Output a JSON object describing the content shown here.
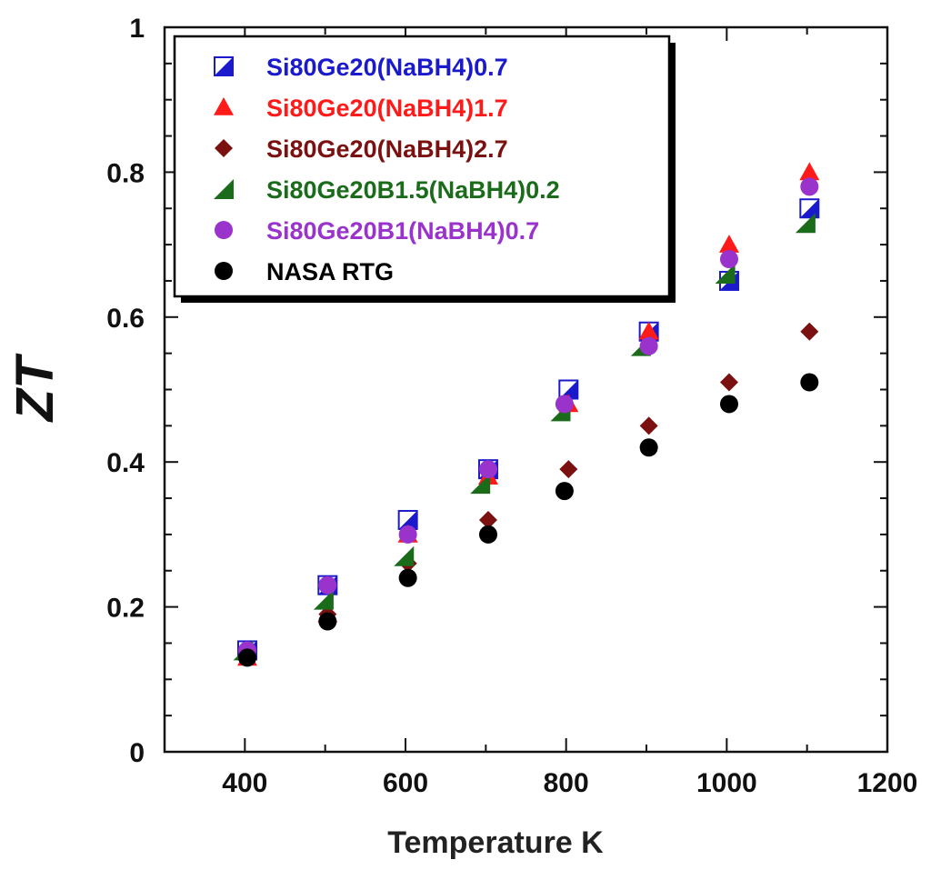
{
  "chart_data": {
    "type": "scatter",
    "xlabel": "Temperature K",
    "ylabel": "ZT",
    "xlim": [
      300,
      1200
    ],
    "ylim": [
      0,
      1
    ],
    "xticks": [
      400,
      600,
      800,
      1000,
      1200
    ],
    "yticks": [
      0,
      0.2,
      0.4,
      0.6,
      0.8,
      1
    ],
    "ytick_labels": [
      "0",
      "0.2",
      "0.4",
      "0.6",
      "0.8",
      "1"
    ],
    "legend_position": "top-left",
    "series": [
      {
        "name": "Si80Ge20(NaBH4)0.7",
        "color": "#1a1acc",
        "marker": "half-filled-square",
        "x": [
          403,
          503,
          603,
          703,
          803,
          903,
          1003,
          1103
        ],
        "y": [
          0.14,
          0.23,
          0.32,
          0.39,
          0.5,
          0.58,
          0.65,
          0.75
        ]
      },
      {
        "name": "Si80Ge20(NaBH4)1.7",
        "color": "#ff1a1a",
        "marker": "triangle-up",
        "x": [
          403,
          503,
          603,
          703,
          803,
          903,
          1003,
          1103
        ],
        "y": [
          0.13,
          0.19,
          0.3,
          0.38,
          0.48,
          0.58,
          0.7,
          0.8
        ]
      },
      {
        "name": "Si80Ge20(NaBH4)2.7",
        "color": "#7a1010",
        "marker": "diamond",
        "x": [
          403,
          503,
          603,
          703,
          803,
          903,
          1003,
          1103
        ],
        "y": [
          0.13,
          0.19,
          0.26,
          0.32,
          0.39,
          0.45,
          0.51,
          0.58
        ]
      },
      {
        "name": "Si80Ge20B1.5(NaBH4)0.2",
        "color": "#1a6b1a",
        "marker": "right-triangle",
        "x": [
          398,
          498,
          598,
          693,
          793,
          893,
          998,
          1098
        ],
        "y": [
          0.14,
          0.21,
          0.27,
          0.37,
          0.47,
          0.56,
          0.66,
          0.73
        ]
      },
      {
        "name": "Si80Ge20B1(NaBH4)0.7",
        "color": "#9933cc",
        "marker": "circle",
        "x": [
          403,
          503,
          603,
          703,
          798,
          903,
          1003,
          1103
        ],
        "y": [
          0.14,
          0.23,
          0.3,
          0.39,
          0.48,
          0.56,
          0.68,
          0.78
        ]
      },
      {
        "name": "NASA RTG",
        "color": "#000000",
        "marker": "circle",
        "x": [
          403,
          503,
          603,
          703,
          798,
          903,
          1003,
          1103
        ],
        "y": [
          0.13,
          0.18,
          0.24,
          0.3,
          0.36,
          0.42,
          0.48,
          0.51
        ]
      }
    ]
  }
}
